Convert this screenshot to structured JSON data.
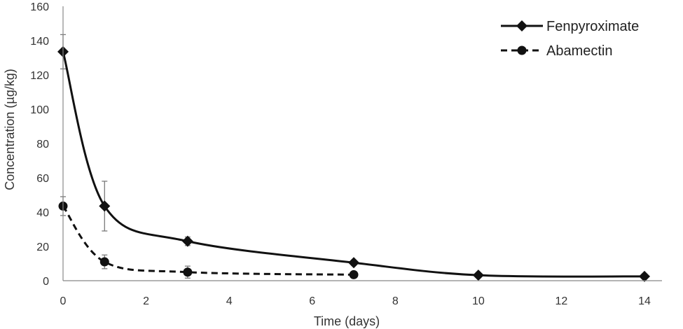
{
  "chart_data": {
    "type": "line",
    "title": "",
    "xlabel": "Time (days)",
    "ylabel": "Concentration (µg/kg)",
    "xlim": [
      0,
      14
    ],
    "ylim": [
      0,
      160
    ],
    "x_ticks": [
      0,
      2,
      4,
      6,
      8,
      10,
      12,
      14
    ],
    "y_ticks": [
      0,
      20,
      40,
      60,
      80,
      100,
      120,
      140,
      160
    ],
    "grid": false,
    "legend_position": "top-right",
    "series": [
      {
        "name": "Fenpyroximate",
        "marker": "diamond",
        "line_style": "solid",
        "color": "#111111",
        "x": [
          0,
          1,
          3,
          7,
          10,
          14
        ],
        "y": [
          133.5,
          43.5,
          23,
          10.5,
          3.2,
          2.5
        ],
        "error": [
          10,
          14.5,
          2.5,
          0.8,
          0.5,
          0.4
        ]
      },
      {
        "name": "Abamectin",
        "marker": "circle",
        "line_style": "dashed",
        "color": "#111111",
        "x": [
          0,
          1,
          3,
          7
        ],
        "y": [
          43.5,
          11,
          5,
          3.5
        ],
        "error": [
          5.5,
          4,
          3.5,
          0.4
        ]
      }
    ]
  }
}
